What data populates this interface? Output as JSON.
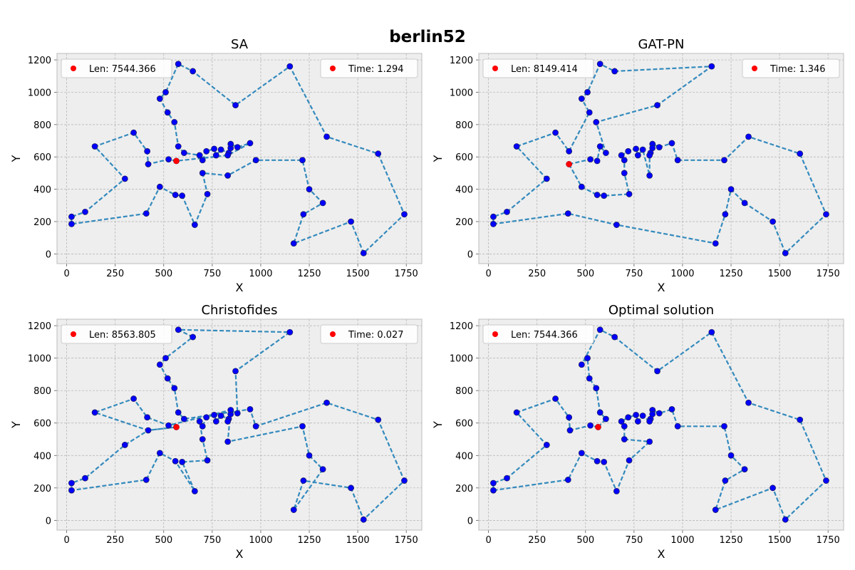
{
  "figure_title": "berlin52",
  "colors": {
    "axes_bg": "#eeeeee",
    "grid": "#b0b0b0",
    "frame": "#bcbcbc",
    "tour_line": "#348abd",
    "city_marker": "#0000ff",
    "start_city": "#ff0000",
    "legend_dot": "#ff0000"
  },
  "chart_data": [
    {
      "type": "scatter",
      "title": "SA",
      "xlabel": "X",
      "ylabel": "Y",
      "xlim": [
        -50,
        1830
      ],
      "ylim": [
        -60,
        1240
      ],
      "xticks": [
        0,
        250,
        500,
        750,
        1000,
        1250,
        1500,
        1750
      ],
      "yticks": [
        0,
        200,
        400,
        600,
        800,
        1000,
        1200
      ],
      "grid": true,
      "legend_left": "Len: 7544.366",
      "legend_right": "Time: 1.294",
      "start_city": [
        565,
        575
      ],
      "tour": [
        [
          565,
          575
        ],
        [
          525,
          585
        ],
        [
          420,
          555
        ],
        [
          415,
          635
        ],
        [
          345,
          750
        ],
        [
          145,
          665
        ],
        [
          300,
          465
        ],
        [
          95,
          260
        ],
        [
          25,
          230
        ],
        [
          25,
          185
        ],
        [
          410,
          250
        ],
        [
          480,
          415
        ],
        [
          560,
          365
        ],
        [
          595,
          360
        ],
        [
          660,
          180
        ],
        [
          725,
          370
        ],
        [
          700,
          500
        ],
        [
          830,
          485
        ],
        [
          975,
          580
        ],
        [
          1215,
          580
        ],
        [
          1250,
          400
        ],
        [
          1320,
          315
        ],
        [
          1220,
          245
        ],
        [
          1170,
          65
        ],
        [
          1465,
          200
        ],
        [
          1530,
          5
        ],
        [
          1740,
          245
        ],
        [
          1605,
          620
        ],
        [
          1340,
          725
        ],
        [
          1150,
          1160
        ],
        [
          870,
          920
        ],
        [
          650,
          1130
        ],
        [
          575,
          1175
        ],
        [
          510,
          1000
        ],
        [
          480,
          960
        ],
        [
          520,
          875
        ],
        [
          555,
          815
        ],
        [
          575,
          665
        ],
        [
          605,
          625
        ],
        [
          685,
          610
        ],
        [
          700,
          580
        ],
        [
          720,
          635
        ],
        [
          760,
          650
        ],
        [
          770,
          610
        ],
        [
          795,
          645
        ],
        [
          835,
          625
        ],
        [
          845,
          655
        ],
        [
          845,
          680
        ],
        [
          880,
          660
        ],
        [
          945,
          685
        ],
        [
          830,
          610
        ],
        [
          565,
          575
        ]
      ]
    },
    {
      "type": "scatter",
      "title": "GAT-PN",
      "xlabel": "X",
      "ylabel": "Y",
      "xlim": [
        -50,
        1830
      ],
      "ylim": [
        -60,
        1240
      ],
      "xticks": [
        0,
        250,
        500,
        750,
        1000,
        1250,
        1500,
        1750
      ],
      "yticks": [
        0,
        200,
        400,
        600,
        800,
        1000,
        1200
      ],
      "grid": true,
      "legend_left": "Len: 8149.414",
      "legend_right": "Time: 1.346",
      "start_city": [
        415,
        555
      ],
      "tour": [
        [
          415,
          555
        ],
        [
          525,
          585
        ],
        [
          560,
          575
        ],
        [
          575,
          665
        ],
        [
          605,
          625
        ],
        [
          555,
          815
        ],
        [
          870,
          920
        ],
        [
          1150,
          1160
        ],
        [
          650,
          1130
        ],
        [
          575,
          1175
        ],
        [
          510,
          1000
        ],
        [
          480,
          960
        ],
        [
          520,
          875
        ],
        [
          415,
          635
        ],
        [
          345,
          750
        ],
        [
          145,
          665
        ],
        [
          300,
          465
        ],
        [
          95,
          260
        ],
        [
          25,
          230
        ],
        [
          25,
          185
        ],
        [
          410,
          250
        ],
        [
          660,
          180
        ],
        [
          1170,
          65
        ],
        [
          1220,
          245
        ],
        [
          1250,
          400
        ],
        [
          1320,
          315
        ],
        [
          1465,
          200
        ],
        [
          1530,
          5
        ],
        [
          1740,
          245
        ],
        [
          1605,
          620
        ],
        [
          1340,
          725
        ],
        [
          1215,
          580
        ],
        [
          975,
          580
        ],
        [
          945,
          685
        ],
        [
          880,
          660
        ],
        [
          845,
          680
        ],
        [
          845,
          655
        ],
        [
          835,
          625
        ],
        [
          830,
          610
        ],
        [
          830,
          485
        ],
        [
          795,
          645
        ],
        [
          770,
          610
        ],
        [
          760,
          650
        ],
        [
          720,
          635
        ],
        [
          685,
          610
        ],
        [
          700,
          580
        ],
        [
          700,
          500
        ],
        [
          725,
          370
        ],
        [
          595,
          360
        ],
        [
          560,
          365
        ],
        [
          480,
          415
        ],
        [
          415,
          555
        ]
      ]
    },
    {
      "type": "scatter",
      "title": "Christofides",
      "xlabel": "X",
      "ylabel": "Y",
      "xlim": [
        -50,
        1830
      ],
      "ylim": [
        -60,
        1240
      ],
      "xticks": [
        0,
        250,
        500,
        750,
        1000,
        1250,
        1500,
        1750
      ],
      "yticks": [
        0,
        200,
        400,
        600,
        800,
        1000,
        1200
      ],
      "grid": true,
      "legend_left": "Len: 8563.805",
      "legend_right": "Time: 0.027",
      "start_city": [
        565,
        575
      ],
      "tour": [
        [
          565,
          575
        ],
        [
          420,
          555
        ],
        [
          300,
          465
        ],
        [
          95,
          260
        ],
        [
          25,
          230
        ],
        [
          25,
          185
        ],
        [
          410,
          250
        ],
        [
          480,
          415
        ],
        [
          560,
          365
        ],
        [
          660,
          180
        ],
        [
          595,
          360
        ],
        [
          725,
          370
        ],
        [
          700,
          500
        ],
        [
          685,
          610
        ],
        [
          700,
          580
        ],
        [
          720,
          635
        ],
        [
          760,
          650
        ],
        [
          770,
          610
        ],
        [
          795,
          645
        ],
        [
          835,
          625
        ],
        [
          830,
          610
        ],
        [
          845,
          655
        ],
        [
          845,
          680
        ],
        [
          880,
          660
        ],
        [
          870,
          920
        ],
        [
          1150,
          1160
        ],
        [
          575,
          1175
        ],
        [
          650,
          1130
        ],
        [
          510,
          1000
        ],
        [
          480,
          960
        ],
        [
          520,
          875
        ],
        [
          555,
          815
        ],
        [
          575,
          665
        ],
        [
          605,
          625
        ],
        [
          945,
          685
        ],
        [
          975,
          580
        ],
        [
          1340,
          725
        ],
        [
          1605,
          620
        ],
        [
          1740,
          245
        ],
        [
          1530,
          5
        ],
        [
          1465,
          200
        ],
        [
          1220,
          245
        ],
        [
          1170,
          65
        ],
        [
          1320,
          315
        ],
        [
          1250,
          400
        ],
        [
          1215,
          580
        ],
        [
          830,
          485
        ],
        [
          845,
          680
        ],
        [
          525,
          585
        ],
        [
          415,
          635
        ],
        [
          345,
          750
        ],
        [
          145,
          665
        ],
        [
          420,
          555
        ],
        [
          565,
          575
        ]
      ]
    },
    {
      "type": "scatter",
      "title": "Optimal solution",
      "xlabel": "X",
      "ylabel": "Y",
      "xlim": [
        -50,
        1830
      ],
      "ylim": [
        -60,
        1240
      ],
      "xticks": [
        0,
        250,
        500,
        750,
        1000,
        1250,
        1500,
        1750
      ],
      "yticks": [
        0,
        200,
        400,
        600,
        800,
        1000,
        1200
      ],
      "grid": true,
      "legend_left": "Len: 7544.366",
      "legend_right": "",
      "start_city": [
        565,
        575
      ],
      "tour": [
        [
          565,
          575
        ],
        [
          605,
          625
        ],
        [
          575,
          665
        ],
        [
          555,
          815
        ],
        [
          520,
          875
        ],
        [
          510,
          1000
        ],
        [
          480,
          960
        ],
        [
          575,
          1175
        ],
        [
          650,
          1130
        ],
        [
          870,
          920
        ],
        [
          1150,
          1160
        ],
        [
          1340,
          725
        ],
        [
          1605,
          620
        ],
        [
          1740,
          245
        ],
        [
          1530,
          5
        ],
        [
          1465,
          200
        ],
        [
          1170,
          65
        ],
        [
          1220,
          245
        ],
        [
          1320,
          315
        ],
        [
          1250,
          400
        ],
        [
          1215,
          580
        ],
        [
          975,
          580
        ],
        [
          945,
          685
        ],
        [
          880,
          660
        ],
        [
          845,
          680
        ],
        [
          845,
          655
        ],
        [
          835,
          625
        ],
        [
          830,
          610
        ],
        [
          795,
          645
        ],
        [
          770,
          610
        ],
        [
          760,
          650
        ],
        [
          720,
          635
        ],
        [
          685,
          610
        ],
        [
          700,
          580
        ],
        [
          700,
          500
        ],
        [
          830,
          485
        ],
        [
          725,
          370
        ],
        [
          660,
          180
        ],
        [
          595,
          360
        ],
        [
          560,
          365
        ],
        [
          480,
          415
        ],
        [
          410,
          250
        ],
        [
          25,
          185
        ],
        [
          25,
          230
        ],
        [
          95,
          260
        ],
        [
          300,
          465
        ],
        [
          145,
          665
        ],
        [
          345,
          750
        ],
        [
          415,
          635
        ],
        [
          420,
          555
        ],
        [
          525,
          585
        ],
        [
          565,
          575
        ]
      ]
    }
  ]
}
